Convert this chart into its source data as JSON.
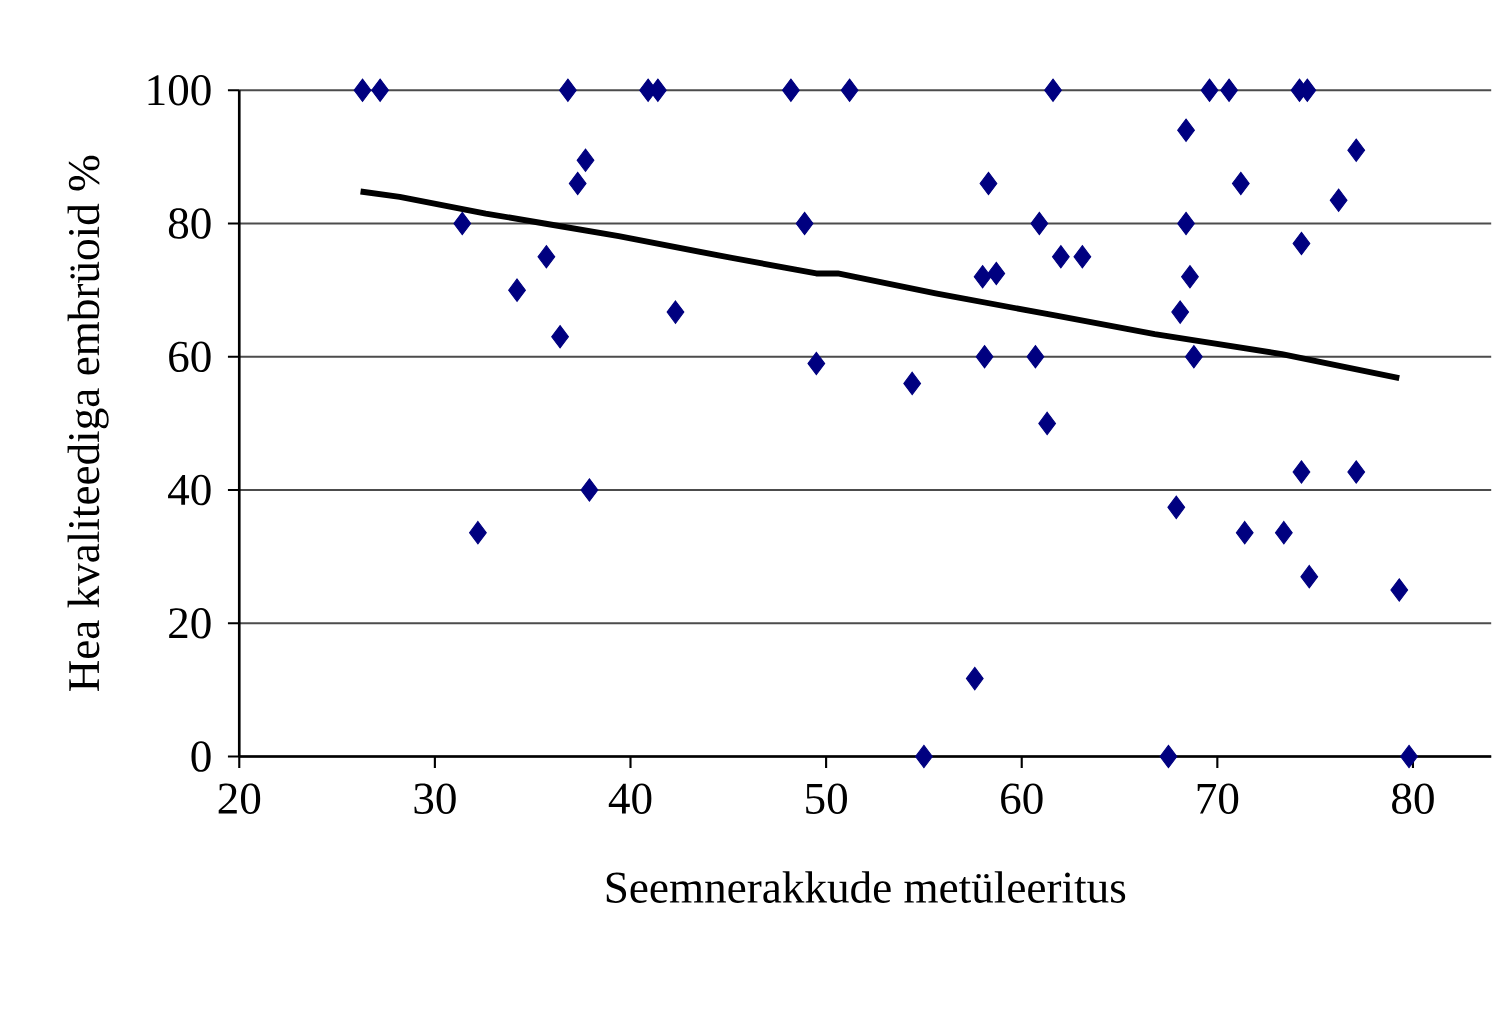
{
  "chart_data": {
    "type": "scatter",
    "xlabel": "Seemnerakkude metüleeritus",
    "ylabel": "Hea kvaliteediga embrüoid %",
    "xlim": [
      20,
      84
    ],
    "ylim": [
      0,
      100
    ],
    "xticks": [
      20,
      30,
      40,
      50,
      60,
      70,
      80
    ],
    "yticks": [
      0,
      20,
      40,
      60,
      80,
      100
    ],
    "grid": "y",
    "marker": "diamond",
    "series": [
      {
        "color": "#000080",
        "x": [
          26.3,
          27.2,
          36.8,
          40.9,
          41.4,
          48.2,
          51.2,
          37.7,
          37.3,
          31.4,
          35.7,
          34.2,
          36.4,
          42.3,
          48.9,
          49.5,
          32.2,
          37.9,
          61.6,
          69.6,
          70.6,
          74.2,
          74.6,
          68.4,
          77.1,
          58.3,
          71.2,
          76.2,
          60.9,
          68.4,
          74.3,
          62.0,
          63.1,
          58.0,
          58.7,
          68.6,
          68.1,
          58.1,
          60.7,
          68.8,
          54.4,
          61.3,
          74.3,
          77.1,
          67.9,
          71.4,
          73.4,
          74.7,
          79.3,
          57.6,
          55.0,
          67.5,
          79.8
        ],
        "values": [
          100,
          100,
          100,
          100,
          100,
          100,
          100,
          89.5,
          86,
          80,
          75,
          70,
          63,
          66.7,
          80,
          59,
          33.6,
          40,
          100,
          100,
          100,
          100,
          100,
          94,
          91,
          86,
          86,
          83.5,
          80,
          80,
          77,
          75,
          75,
          72,
          72.5,
          72,
          66.7,
          60,
          60,
          60,
          56,
          50,
          42.7,
          42.7,
          37.4,
          33.6,
          33.6,
          27,
          25,
          11.7,
          0,
          0,
          0
        ]
      },
      {
        "type": "line",
        "color": "#000000",
        "marker": "none",
        "x": [
          26.2,
          28.2,
          32.6,
          35.6,
          39.4,
          44.5,
          49.5,
          50.6,
          55.6,
          61.7,
          66.8,
          73.3,
          79.3
        ],
        "values": [
          84.8,
          84,
          81.5,
          80,
          78.1,
          75.2,
          72.5,
          72.5,
          69.5,
          66.2,
          63.4,
          60.4,
          56.8
        ]
      }
    ]
  }
}
